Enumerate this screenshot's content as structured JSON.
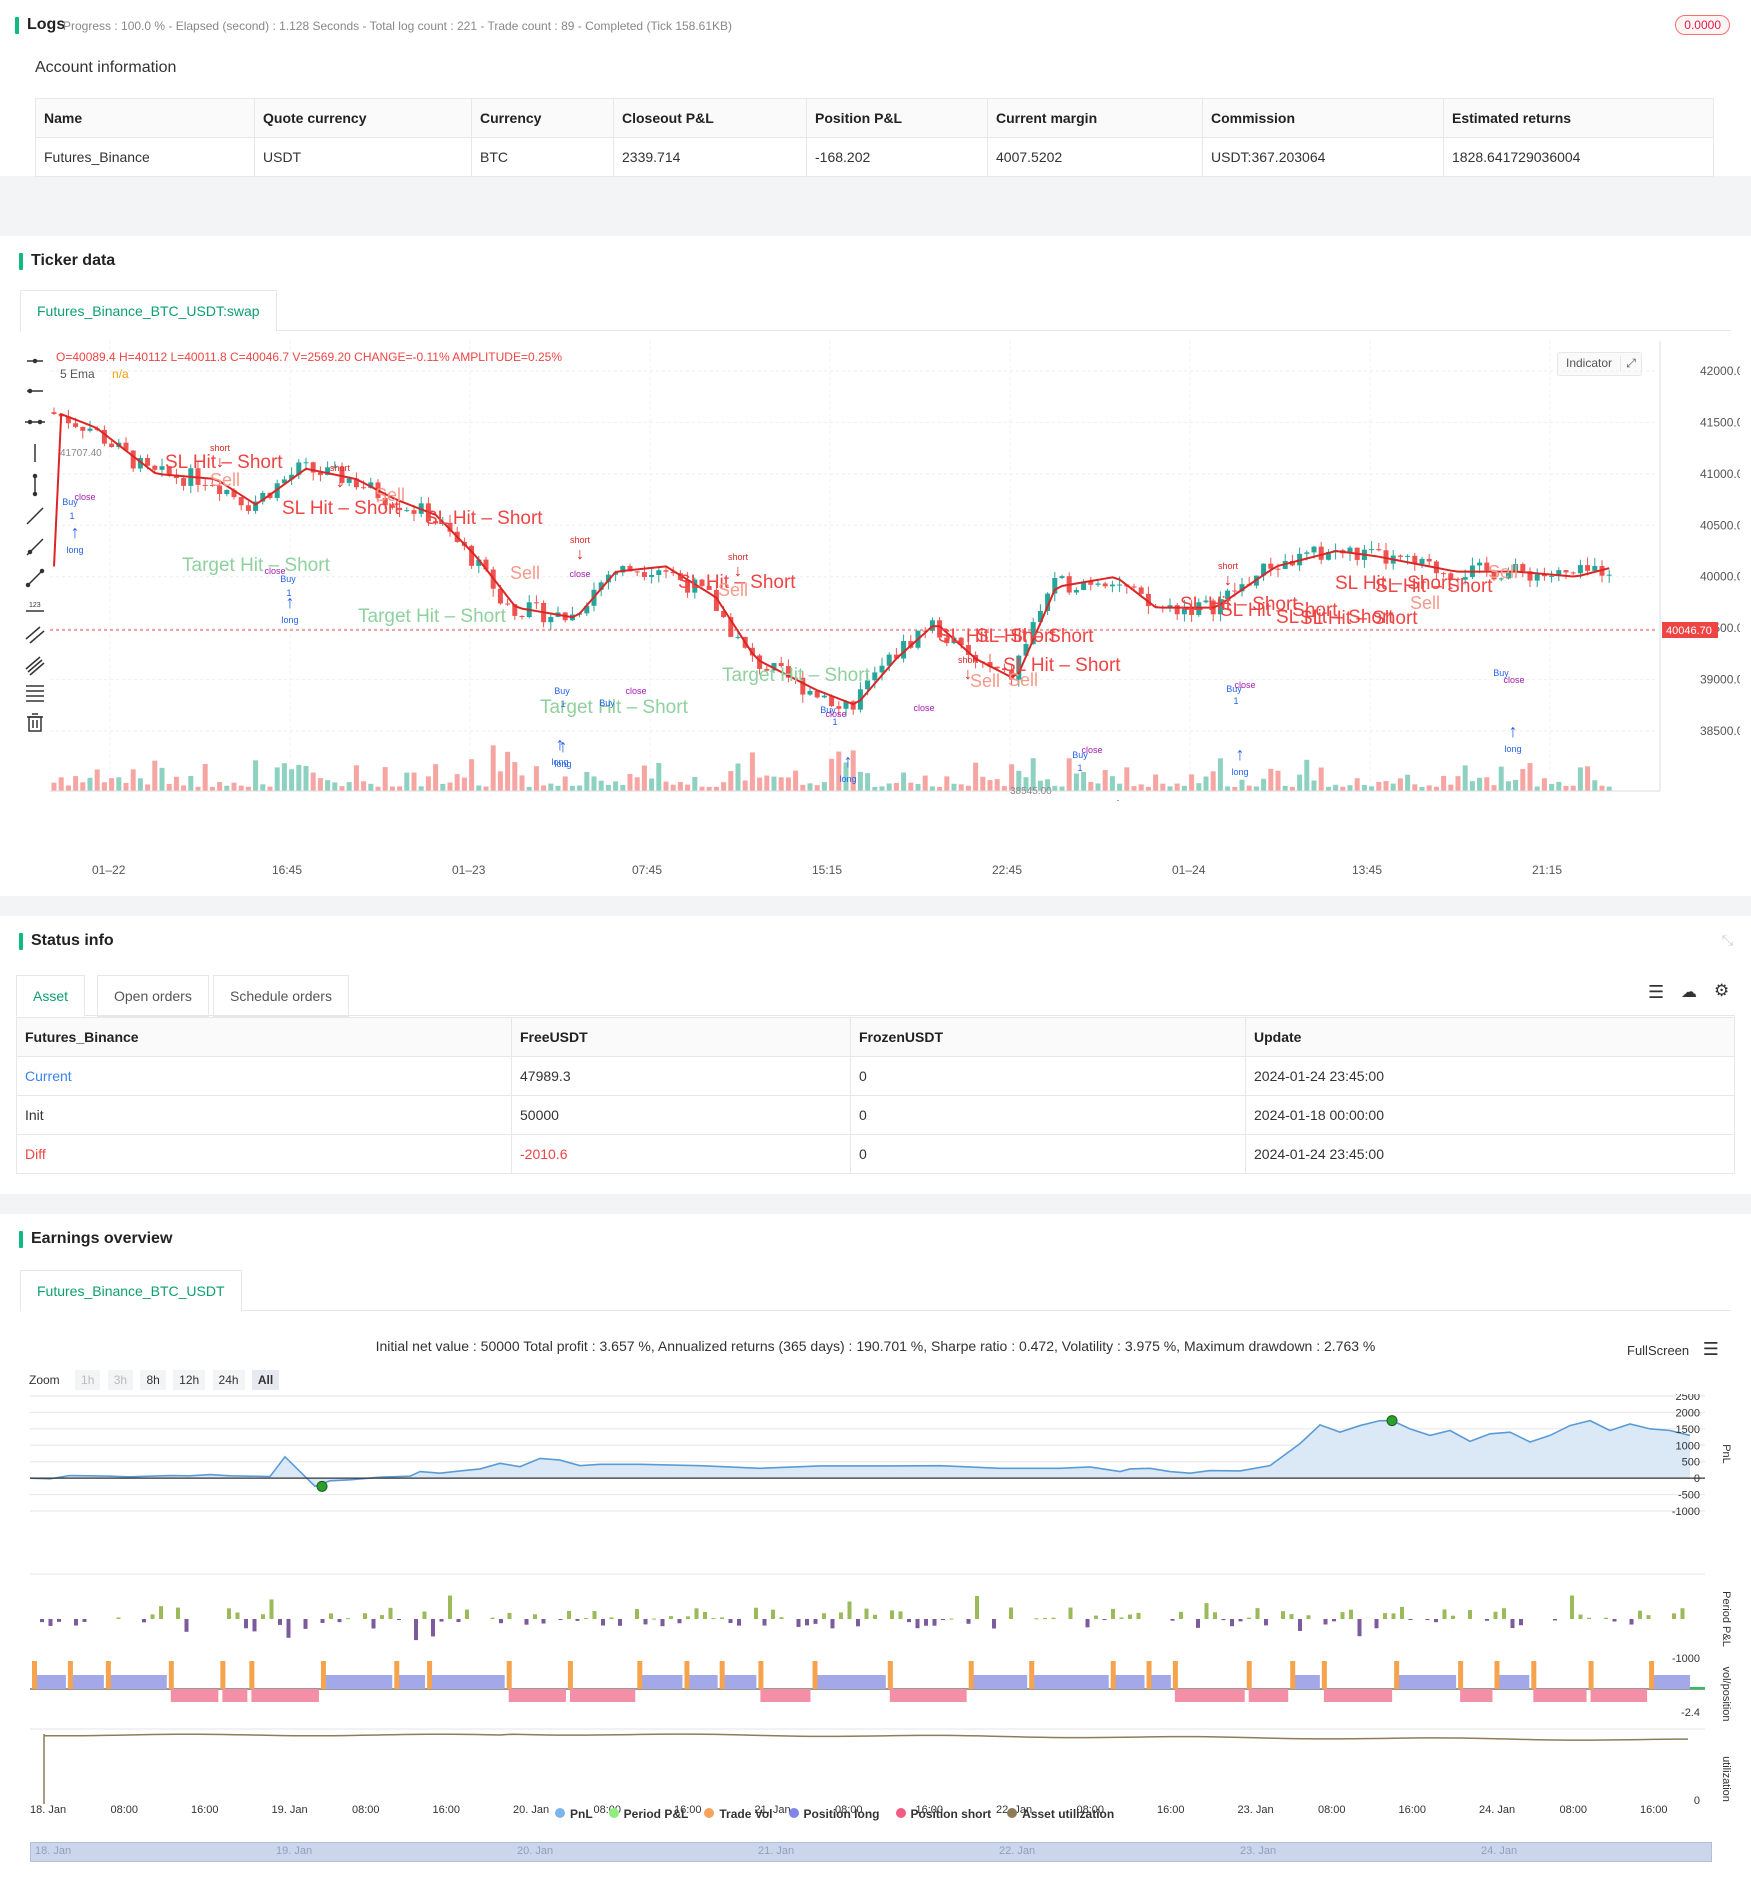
{
  "logs": {
    "title": "Logs",
    "summary": "Progress : 100.0 % - Elapsed (second) : 1.128  Seconds - Total log count : 221 - Trade count : 89 - Completed (Tick 158.61KB)",
    "badge": "0.0000"
  },
  "account": {
    "title": "Account information",
    "headers": [
      "Name",
      "Quote currency",
      "Currency",
      "Closeout P&L",
      "Position P&L",
      "Current margin",
      "Commission",
      "Estimated returns"
    ],
    "row": [
      "Futures_Binance",
      "USDT",
      "BTC",
      "2339.714",
      "-168.202",
      "4007.5202",
      "USDT:367.203064",
      "1828.641729036004"
    ]
  },
  "ticker": {
    "title": "Ticker data",
    "tab": "Futures_Binance_BTC_USDT:swap",
    "ohlc_line": "O=40089.4 H=40112 L=40011.8 C=40046.7 V=2569.20 CHANGE=-0.11% AMPLITUDE=0.25%",
    "ema_label": "5 Ema",
    "ema_value": "n/a",
    "indicator_btn": "Indicator",
    "price_ticks": [
      "42000.00",
      "41500.00",
      "41000.00",
      "40500.00",
      "40000.00",
      "39500.00",
      "39000.00",
      "38500.00"
    ],
    "time_ticks": [
      "01–22",
      "16:45",
      "01–23",
      "07:45",
      "15:15",
      "22:45",
      "01–24",
      "13:45",
      "21:15"
    ],
    "current_price": "40046.70",
    "high_label": "41707.40",
    "low_label": "38545.00",
    "annotations": {
      "sl_hit_short": "SL Hit – Short",
      "target_hit_short": "Target Hit – Short",
      "sell": "Sell",
      "buy": "Buy",
      "short": "short",
      "long": "long",
      "close": "close",
      "one": "1"
    }
  },
  "status": {
    "title": "Status info",
    "tabs": [
      "Asset",
      "Open orders",
      "Schedule orders"
    ],
    "headers": [
      "Futures_Binance",
      "FreeUSDT",
      "FrozenUSDT",
      "Update"
    ],
    "rows": [
      [
        "Current",
        "47989.3",
        "0",
        "2024-01-24 23:45:00"
      ],
      [
        "Init",
        "50000",
        "0",
        "2024-01-18 00:00:00"
      ],
      [
        "Diff",
        "-2010.6",
        "0",
        "2024-01-24 23:45:00"
      ]
    ]
  },
  "earnings": {
    "title": "Earnings overview",
    "tab": "Futures_Binance_BTC_USDT",
    "summary": "Initial net value : 50000 Total profit : 3.657 %, Annualized returns (365 days) : 190.701 %, Sharpe ratio : 0.472, Volatility : 3.975 %, Maximum drawdown : 2.763 %",
    "fullscreen": "FullScreen",
    "zoom_label": "Zoom",
    "zoom_options": [
      "1h",
      "3h",
      "8h",
      "12h",
      "24h",
      "All"
    ],
    "pnl_ticks": [
      "2500",
      "2000",
      "1500",
      "1000",
      "500",
      "0",
      "-500",
      "-1000"
    ],
    "period_ticks": [
      "-1000"
    ],
    "pos_ticks": [
      "-2.4"
    ],
    "util_ticks": [
      "0"
    ],
    "axis_titles": [
      "PnL",
      "Period P&L",
      "vol/position",
      "utilization"
    ],
    "time_ticks": [
      "18. Jan",
      "08:00",
      "16:00",
      "19. Jan",
      "08:00",
      "16:00",
      "20. Jan",
      "08:00",
      "16:00",
      "21. Jan",
      "08:00",
      "16:00",
      "22. Jan",
      "08:00",
      "16:00",
      "23. Jan",
      "08:00",
      "16:00",
      "24. Jan",
      "08:00",
      "16:00"
    ],
    "nav_ticks": [
      "18. Jan",
      "19. Jan",
      "20. Jan",
      "21. Jan",
      "22. Jan",
      "23. Jan",
      "24. Jan"
    ],
    "legend": [
      {
        "label": "PnL",
        "color": "#7cb5ec"
      },
      {
        "label": "Period P&L",
        "color": "#90ed7d"
      },
      {
        "label": "Trade Vol",
        "color": "#f7a35c"
      },
      {
        "label": "Position long",
        "color": "#8085e9"
      },
      {
        "label": "Position short",
        "color": "#f15c80"
      },
      {
        "label": "Asset utilization",
        "color": "#8d7b5a"
      }
    ]
  },
  "colors": {
    "accent": "#10b981",
    "up": "#26a69a",
    "down": "#ef5350",
    "ema": "#e11d1d",
    "pnl": "#7cb5ec"
  }
}
